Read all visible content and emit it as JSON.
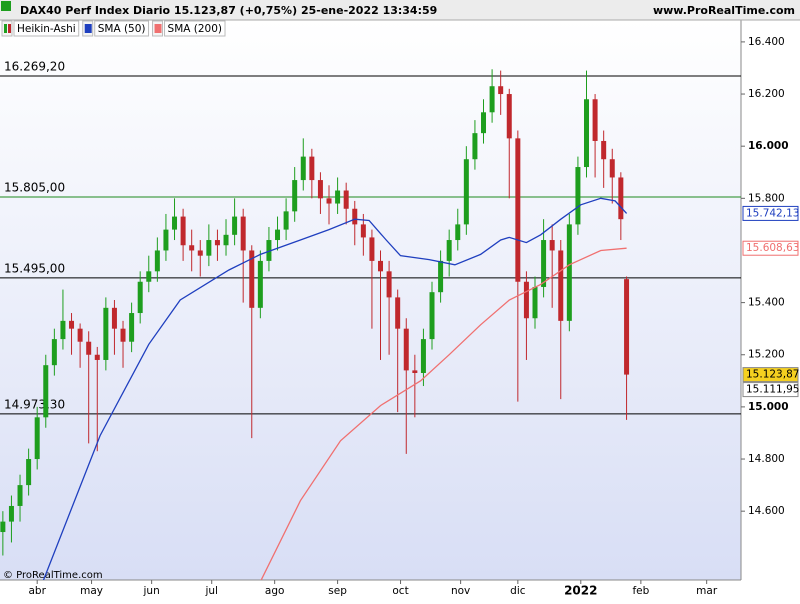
{
  "chart_data": {
    "type": "candlestick",
    "title": "DAX40 Perf Index Diario 15.123,87 (+0,75%) 25-ene-2022 13:34:59",
    "source": "www.ProRealTime.com",
    "footer": "© ProRealTime.com",
    "xlim": [
      -1,
      258
    ],
    "ylim": [
      14336,
      16484
    ],
    "xticks": [
      {
        "value": 12,
        "label": "abr"
      },
      {
        "value": 31,
        "label": "may"
      },
      {
        "value": 52,
        "label": "jun"
      },
      {
        "value": 73,
        "label": "jul"
      },
      {
        "value": 95,
        "label": "ago"
      },
      {
        "value": 117,
        "label": "sep"
      },
      {
        "value": 139,
        "label": "oct"
      },
      {
        "value": 160,
        "label": "nov"
      },
      {
        "value": 180,
        "label": "dic"
      },
      {
        "value": 202,
        "label": "2022"
      },
      {
        "value": 223,
        "label": "feb"
      },
      {
        "value": 246,
        "label": "mar"
      }
    ],
    "yticks": [
      {
        "value": 16400,
        "label": "16.400"
      },
      {
        "value": 16200,
        "label": "16.200"
      },
      {
        "value": 16000,
        "label": "16.000"
      },
      {
        "value": 15800,
        "label": "15.800"
      },
      {
        "value": 15400,
        "label": "15.400"
      },
      {
        "value": 15200,
        "label": "15.200"
      },
      {
        "value": 15000,
        "label": "15.000"
      },
      {
        "value": 14800,
        "label": "14.800"
      },
      {
        "value": 14600,
        "label": "14.600"
      }
    ],
    "candles": {
      "name": "Heikin-Ashi",
      "up_color": "#1e9e1e",
      "down_color": "#c0282d",
      "x": [
        0,
        3,
        6,
        9,
        12,
        15,
        18,
        21,
        24,
        27,
        30,
        33,
        36,
        39,
        42,
        45,
        48,
        51,
        54,
        57,
        60,
        63,
        66,
        69,
        72,
        75,
        78,
        81,
        84,
        87,
        90,
        93,
        96,
        99,
        102,
        105,
        108,
        111,
        114,
        117,
        120,
        123,
        126,
        129,
        132,
        135,
        138,
        141,
        144,
        147,
        150,
        153,
        156,
        159,
        162,
        165,
        168,
        171,
        174,
        177,
        180,
        183,
        186,
        189,
        192,
        195,
        198,
        201,
        204,
        207,
        210,
        213,
        216,
        218
      ],
      "open": [
        14520,
        14560,
        14620,
        14700,
        14800,
        14960,
        15160,
        15260,
        15330,
        15300,
        15250,
        15200,
        15180,
        15380,
        15300,
        15250,
        15360,
        15480,
        15520,
        15600,
        15680,
        15730,
        15620,
        15600,
        15580,
        15640,
        15620,
        15660,
        15730,
        15600,
        15380,
        15560,
        15640,
        15680,
        15750,
        15870,
        15960,
        15870,
        15800,
        15780,
        15830,
        15760,
        15700,
        15650,
        15560,
        15520,
        15420,
        15300,
        15140,
        15130,
        15260,
        15440,
        15560,
        15640,
        15700,
        15950,
        16050,
        16130,
        16230,
        16200,
        16030,
        15480,
        15340,
        15460,
        15640,
        15600,
        15330,
        15700,
        15920,
        16180,
        16020,
        15950,
        15880,
        15490
      ],
      "high": [
        14600,
        14660,
        14740,
        14840,
        15000,
        15200,
        15300,
        15450,
        15360,
        15320,
        15290,
        15230,
        15420,
        15410,
        15330,
        15400,
        15520,
        15580,
        15650,
        15740,
        15800,
        15760,
        15680,
        15640,
        15700,
        15680,
        15720,
        15800,
        15760,
        15620,
        15600,
        15690,
        15730,
        15800,
        15920,
        16030,
        15990,
        15900,
        15850,
        15880,
        15860,
        15790,
        15740,
        15680,
        15600,
        15560,
        15450,
        15340,
        15200,
        15300,
        15480,
        15600,
        15680,
        15760,
        16000,
        16100,
        16180,
        16295,
        16290,
        16220,
        16060,
        15520,
        15500,
        15720,
        15700,
        15640,
        15740,
        15960,
        16290,
        16200,
        16060,
        15990,
        15900,
        15500
      ],
      "low": [
        14430,
        14480,
        14560,
        14660,
        14760,
        14920,
        15120,
        15220,
        15200,
        15150,
        14860,
        14830,
        15140,
        15200,
        15150,
        15210,
        15320,
        15440,
        15480,
        15560,
        15640,
        15560,
        15520,
        15500,
        15540,
        15560,
        15580,
        15620,
        15400,
        14880,
        15340,
        15520,
        15600,
        15640,
        15710,
        15830,
        15800,
        15740,
        15700,
        15740,
        15700,
        15620,
        15580,
        15300,
        15180,
        15200,
        14980,
        14820,
        14960,
        15080,
        15220,
        15400,
        15500,
        15600,
        15660,
        15910,
        16010,
        16090,
        16120,
        15800,
        15020,
        15180,
        15300,
        15420,
        15380,
        15030,
        15290,
        15660,
        15880,
        15880,
        15840,
        15780,
        15640,
        14950
      ],
      "close": [
        14560,
        14620,
        14700,
        14800,
        14960,
        15160,
        15260,
        15330,
        15300,
        15250,
        15200,
        15180,
        15380,
        15300,
        15250,
        15360,
        15480,
        15520,
        15600,
        15680,
        15730,
        15620,
        15600,
        15580,
        15640,
        15620,
        15660,
        15730,
        15600,
        15380,
        15560,
        15640,
        15680,
        15750,
        15870,
        15960,
        15870,
        15800,
        15780,
        15830,
        15760,
        15700,
        15650,
        15560,
        15520,
        15420,
        15300,
        15140,
        15130,
        15260,
        15440,
        15560,
        15640,
        15700,
        15950,
        16050,
        16130,
        16230,
        16200,
        16030,
        15480,
        15340,
        15460,
        15640,
        15600,
        15330,
        15700,
        15920,
        16180,
        16020,
        15950,
        15880,
        15720,
        15123.87
      ]
    },
    "series": [
      {
        "name": "SMA (50)",
        "color": "#1f3fbf",
        "x": [
          14,
          34,
          51,
          62,
          79,
          90,
          104,
          114,
          123,
          128,
          134,
          139,
          149,
          158,
          167,
          174,
          177,
          183,
          188,
          195,
          202,
          209,
          214,
          218
        ],
        "values": [
          14330,
          14890,
          15240,
          15410,
          15525,
          15585,
          15640,
          15680,
          15720,
          15715,
          15640,
          15580,
          15565,
          15545,
          15585,
          15640,
          15650,
          15630,
          15660,
          15720,
          15775,
          15800,
          15790,
          15742.13
        ]
      },
      {
        "name": "SMA (200)",
        "color": "#f07070",
        "x": [
          90,
          104,
          118,
          132,
          146,
          156,
          167,
          177,
          188,
          198,
          209,
          218
        ],
        "values": [
          14330,
          14640,
          14870,
          15005,
          15100,
          15200,
          15315,
          15410,
          15470,
          15545,
          15600,
          15608.63
        ]
      }
    ],
    "levels": [
      {
        "value": 16269.2,
        "label": "16.269,20",
        "color": "#000000"
      },
      {
        "value": 15805,
        "label": "15.805,00",
        "color": "#1e8a1e"
      },
      {
        "value": 15495,
        "label": "15.495,00",
        "color": "#000000"
      },
      {
        "value": 14973.3,
        "label": "14.973,30",
        "color": "#000000"
      }
    ],
    "price_tags": [
      {
        "value": 15742.13,
        "label": "15.742,13",
        "color": "#1f3fbf",
        "fill": "#ffffff"
      },
      {
        "value": 15608.63,
        "label": "15.608,63",
        "color": "#f07070",
        "fill": "#ffffff"
      },
      {
        "value": 15123.87,
        "label": "15.123,87",
        "color": "#000000",
        "fill": "#f5d020"
      },
      {
        "value": 15111.95,
        "label": "15.111,95",
        "color": "#000000",
        "fill": "#ffffff"
      }
    ]
  }
}
